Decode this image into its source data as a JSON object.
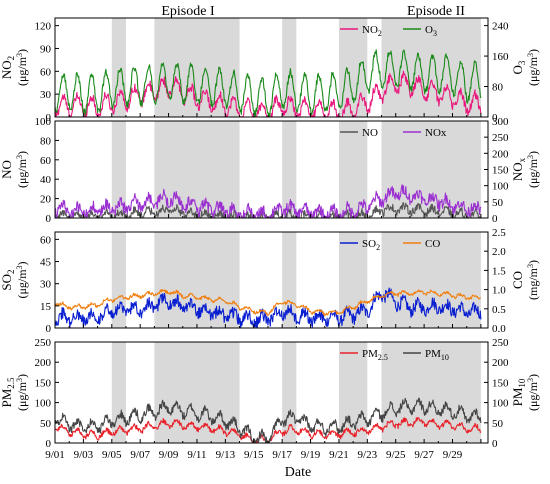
{
  "figure": {
    "episode_labels": [
      "Episode I",
      "Episode II"
    ],
    "x_axis_label": "Date",
    "x_tick_labels": [
      "9/01",
      "9/03",
      "9/05",
      "9/07",
      "9/09",
      "9/11",
      "9/13",
      "9/15",
      "9/17",
      "9/19",
      "9/21",
      "9/23",
      "9/25",
      "9/27",
      "9/29"
    ],
    "shaded_intervals_days": [
      [
        4.0,
        5.0
      ],
      [
        7.0,
        13.0
      ],
      [
        16.0,
        17.0
      ],
      [
        20.0,
        22.0
      ],
      [
        23.0,
        30.0
      ]
    ],
    "shade_color": "#d9d9d9"
  },
  "chart_data": [
    {
      "type": "line",
      "x_range_days": [
        0,
        30.5
      ],
      "left_label": {
        "main": "NO",
        "sub": "2",
        "unit": "(μg/m",
        "sup": "3",
        "close": ")"
      },
      "right_label": {
        "main": "O",
        "sub": "3",
        "unit": "(μg/m",
        "sup": "3",
        "close": ")"
      },
      "left_ylim": [
        0,
        130
      ],
      "left_ticks": [
        0,
        30,
        60,
        90,
        120
      ],
      "right_ylim": [
        0,
        260
      ],
      "right_ticks": [
        0,
        80,
        160,
        240
      ],
      "series": [
        {
          "name": "NO",
          "sub": "2",
          "axis": "left",
          "color": "#e8197d",
          "day_levels": [
            14,
            15,
            16,
            13,
            20,
            24,
            30,
            34,
            40,
            34,
            24,
            20,
            16,
            10,
            7,
            5,
            16,
            12,
            10,
            8,
            6,
            10,
            20,
            34,
            44,
            42,
            36,
            32,
            26,
            18
          ],
          "amplitude": 12,
          "noise": 6
        },
        {
          "name": "O",
          "sub": "3",
          "axis": "left",
          "color": "#1a8a1a",
          "day_levels": [
            32,
            34,
            30,
            30,
            38,
            40,
            42,
            44,
            46,
            44,
            42,
            40,
            38,
            32,
            28,
            24,
            36,
            34,
            30,
            32,
            34,
            42,
            58,
            62,
            64,
            60,
            56,
            58,
            54,
            46
          ],
          "amplitude": 24,
          "noise": 5
        }
      ],
      "legend_position": "top-right"
    },
    {
      "type": "line",
      "x_range_days": [
        0,
        30.5
      ],
      "left_label": {
        "main": "NO",
        "sub": "",
        "unit": "(μg/m",
        "sup": "3",
        "close": ")"
      },
      "right_label": {
        "main": "NO",
        "sub": "x",
        "unit": "(μg/m",
        "sup": "3",
        "close": ")"
      },
      "left_ylim": [
        0,
        100
      ],
      "left_ticks": [
        0,
        20,
        40,
        60,
        80,
        100
      ],
      "right_ylim": [
        0,
        300
      ],
      "right_ticks": [
        0,
        50,
        100,
        150,
        200,
        250,
        300
      ],
      "series": [
        {
          "name": "NO",
          "sub": "",
          "axis": "left",
          "color": "#555555",
          "day_levels": [
            3,
            2,
            2,
            2,
            3,
            4,
            5,
            6,
            8,
            6,
            4,
            3,
            2,
            1,
            1,
            1,
            3,
            2,
            1,
            1,
            1,
            2,
            4,
            8,
            10,
            9,
            8,
            7,
            5,
            3
          ],
          "amplitude": 3,
          "noise": 4
        },
        {
          "name": "NOx",
          "sub": "",
          "axis": "left",
          "color": "#9b30d0",
          "day_levels": [
            10,
            8,
            8,
            8,
            10,
            12,
            16,
            18,
            20,
            16,
            12,
            10,
            8,
            5,
            4,
            3,
            10,
            8,
            6,
            5,
            4,
            8,
            12,
            20,
            26,
            24,
            20,
            18,
            14,
            10
          ],
          "amplitude": 5,
          "noise": 6
        }
      ],
      "legend_position": "top-right"
    },
    {
      "type": "line",
      "x_range_days": [
        0,
        30.5
      ],
      "left_label": {
        "main": "SO",
        "sub": "2",
        "unit": "(μg/m",
        "sup": "3",
        "close": ")"
      },
      "right_label": {
        "main": "CO",
        "sub": "",
        "unit": "(mg/m",
        "sup": "3",
        "close": ")"
      },
      "left_ylim": [
        0,
        65
      ],
      "left_ticks": [
        0,
        15,
        30,
        45,
        60
      ],
      "right_ylim": [
        0,
        2.5
      ],
      "right_ticks": [
        0.0,
        0.5,
        1.0,
        1.5,
        2.0,
        2.5
      ],
      "series": [
        {
          "name": "SO",
          "sub": "2",
          "axis": "left",
          "color": "#0a1fd0",
          "day_levels": [
            8,
            7,
            7,
            8,
            11,
            13,
            13,
            16,
            18,
            15,
            13,
            11,
            9,
            7,
            6,
            6,
            11,
            9,
            7,
            7,
            7,
            9,
            12,
            24,
            18,
            14,
            14,
            15,
            13,
            11
          ],
          "amplitude": 3,
          "noise": 4
        },
        {
          "name": "CO",
          "sub": "",
          "axis": "right",
          "color": "#f07f10",
          "day_levels": [
            0.65,
            0.55,
            0.55,
            0.6,
            0.75,
            0.8,
            0.85,
            0.9,
            0.95,
            0.85,
            0.8,
            0.75,
            0.7,
            0.55,
            0.45,
            0.4,
            0.7,
            0.6,
            0.45,
            0.4,
            0.4,
            0.55,
            0.7,
            0.85,
            0.9,
            0.9,
            0.95,
            0.9,
            0.85,
            0.8
          ],
          "amplitude": 0.05,
          "noise": 0.04
        }
      ],
      "legend_position": "top-right"
    },
    {
      "type": "line",
      "x_range_days": [
        0,
        30.5
      ],
      "left_label": {
        "main": "PM",
        "sub": "2.5",
        "unit": "(μg/m",
        "sup": "3",
        "close": ")"
      },
      "right_label": {
        "main": "PM",
        "sub": "10",
        "unit": "(μg/m",
        "sup": "3",
        "close": ")"
      },
      "left_ylim": [
        0,
        250
      ],
      "left_ticks": [
        0,
        50,
        100,
        150,
        200,
        250
      ],
      "right_ylim": [
        0,
        250
      ],
      "right_ticks": [
        0,
        50,
        100,
        150,
        200,
        250
      ],
      "series": [
        {
          "name": "PM",
          "sub": "2.5",
          "axis": "left",
          "color": "#e8222a",
          "day_levels": [
            40,
            30,
            22,
            20,
            28,
            32,
            36,
            42,
            50,
            45,
            40,
            36,
            30,
            20,
            8,
            6,
            30,
            34,
            24,
            20,
            22,
            28,
            32,
            40,
            48,
            50,
            52,
            46,
            44,
            36
          ],
          "amplitude": 8,
          "noise": 6
        },
        {
          "name": "PM",
          "sub": "10",
          "axis": "left",
          "color": "#444444",
          "day_levels": [
            62,
            48,
            40,
            40,
            54,
            62,
            70,
            78,
            88,
            80,
            74,
            66,
            56,
            36,
            14,
            10,
            58,
            62,
            44,
            40,
            42,
            52,
            60,
            74,
            86,
            90,
            92,
            84,
            80,
            66
          ],
          "amplitude": 14,
          "noise": 10
        }
      ],
      "legend_position": "top-right"
    }
  ]
}
